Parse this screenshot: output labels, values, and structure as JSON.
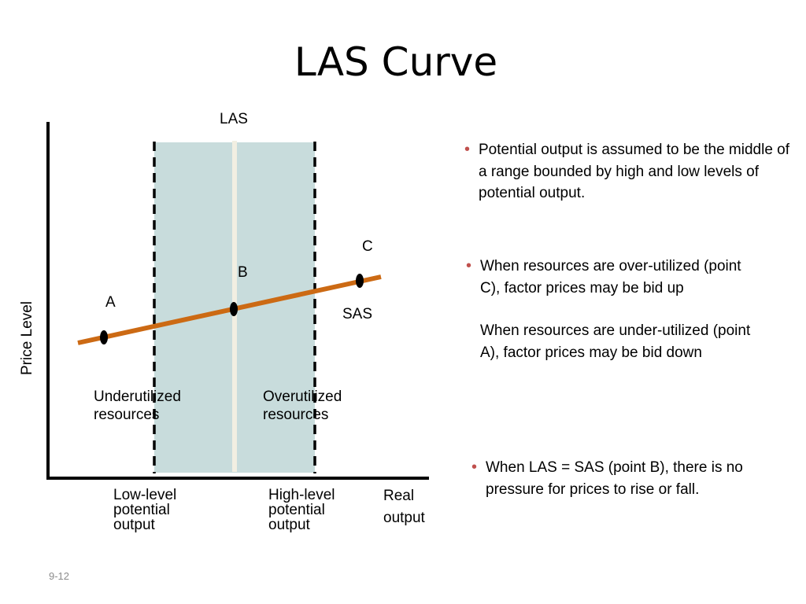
{
  "title": "LAS Curve",
  "diagram": {
    "las_label": "LAS",
    "sas_label": "SAS",
    "y_axis_label": "Price Level",
    "x_axis_label": "Real output",
    "points": {
      "a": "A",
      "b": "B",
      "c": "C"
    },
    "underutilized": "Underutilized resources",
    "overutilized": "Overutilized resources",
    "low_level": "Low-level potential output",
    "high_level": "High-level potential output",
    "colors": {
      "range_fill": "#c8dcdc",
      "sas_line": "#cc6a14",
      "las_line": "#f2efe2",
      "axes": "#000000"
    }
  },
  "bullets": [
    {
      "text": "Potential output is assumed to be the middle of a range bounded by high and low levels of potential output."
    },
    {
      "text": "When resources are over-utilized (point C), factor prices may be bid up",
      "text2": "When resources are under-utilized (point A), factor prices may be bid down"
    },
    {
      "text": "When LAS = SAS (point B), there is no pressure for prices to rise or fall."
    }
  ],
  "slide_number": "9-12"
}
